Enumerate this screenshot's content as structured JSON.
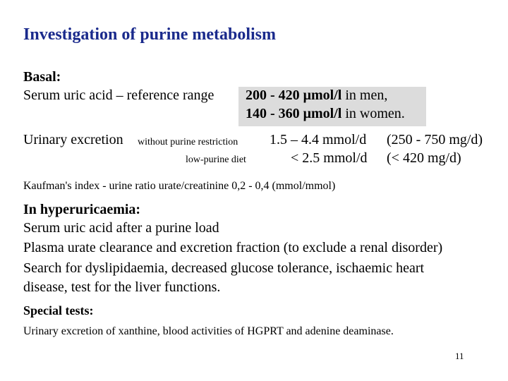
{
  "slide": {
    "title": "Investigation of purine metabolism",
    "page_number": "11"
  },
  "basal": {
    "heading": "Basal:",
    "serum_label": "Serum uric acid – reference range",
    "men_value": "200 - 420 μmol/l",
    "men_suffix": "in men,",
    "women_value": "140 - 360 μmol/l",
    "women_suffix": "in women."
  },
  "urinary": {
    "label": "Urinary excretion",
    "row1_condition": "without purine restriction",
    "row1_value": "1.5 – 4.4 mmol/d",
    "row1_alt": "(250 - 750 mg/d)",
    "row2_condition": "low-purine diet",
    "row2_value": "< 2.5 mmol/d",
    "row2_alt": "(< 420 mg/d)"
  },
  "kaufman": "Kaufman's index - urine ratio urate/creatinine 0,2 - 0,4 (mmol/mmol)",
  "hyper": {
    "heading": "In hyperuricaemia:",
    "lines": [
      "Serum uric acid after a purine load",
      "Plasma urate clearance and excretion fraction (to exclude a renal disorder)",
      "Search for dyslipidaemia, decreased glucose tolerance, ischaemic heart",
      "disease, test for the liver functions."
    ]
  },
  "special": {
    "heading": "Special tests:",
    "text": "Urinary excretion of xanthine, blood activities of HGPRT and adenine deaminase."
  }
}
